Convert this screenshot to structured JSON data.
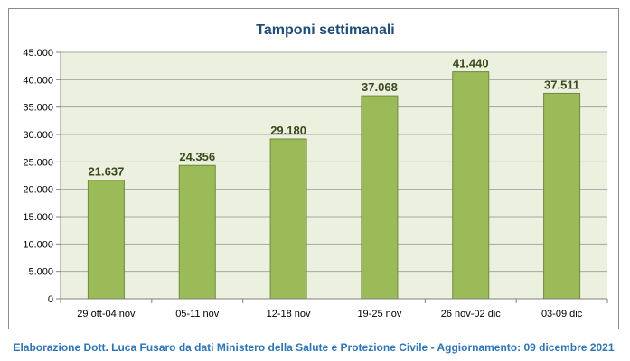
{
  "chart_data": {
    "type": "bar",
    "title": "Tamponi settimanali",
    "categories": [
      "29 ott-04 nov",
      "05-11 nov",
      "12-18 nov",
      "19-25 nov",
      "26 nov-02 dic",
      "03-09 dic"
    ],
    "values": [
      21637,
      24356,
      29180,
      37068,
      41440,
      37511
    ],
    "data_labels": [
      "21.637",
      "24.356",
      "29.180",
      "37.068",
      "41.440",
      "37.511"
    ],
    "ylim": [
      0,
      45000
    ],
    "y_ticks": [
      0,
      5000,
      10000,
      15000,
      20000,
      25000,
      30000,
      35000,
      40000,
      45000
    ],
    "y_tick_labels": [
      "0",
      "5.000",
      "10.000",
      "15.000",
      "20.000",
      "25.000",
      "30.000",
      "35.000",
      "40.000",
      "45.000"
    ],
    "grid": true,
    "colors": {
      "bar": "#9bbb59",
      "bar_border": "#71893f",
      "plot_background": "#ebf1de",
      "grid": "#a6a6a6",
      "title": "#1f4e79",
      "data_label": "#3a4a1e"
    }
  },
  "footer": {
    "credit": "Elaborazione Dott. Luca Fusaro da dati Ministero della Salute e Protezione Civile - Aggiornamento: 09 dicembre 2021"
  }
}
